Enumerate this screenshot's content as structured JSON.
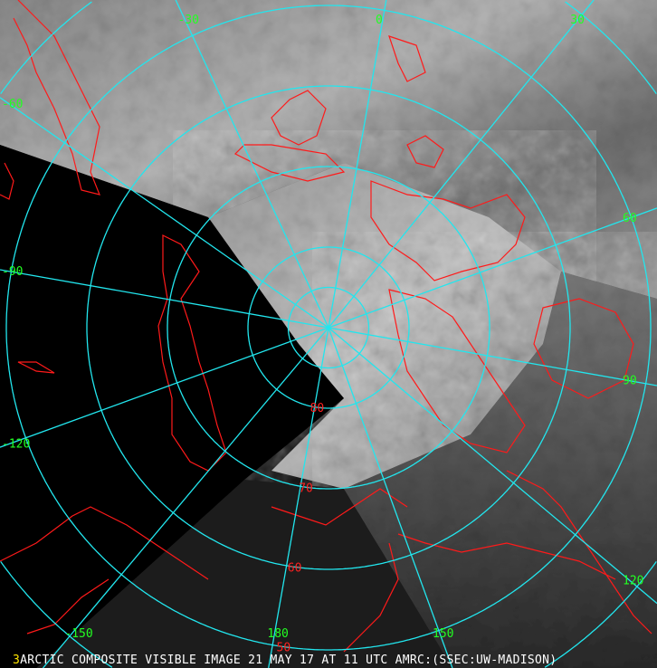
{
  "caption": {
    "frame_number": "3",
    "text": "ARCTIC COMPOSITE VISIBLE IMAGE 21 MAY 17 AT 11 UTC AMRC:(SSEC:UW-MADISON)"
  },
  "colors": {
    "graticule": "#22e6ee",
    "coastline": "#ff1a1a",
    "longitude_labels": "#22ff22",
    "latitude_labels": "#ff2020",
    "frame_number": "#ffe600",
    "caption": "#ffffff"
  },
  "map": {
    "projection": "polar stereographic, north pole centered",
    "longitude_labels": [
      {
        "value": "0",
        "angle": -80
      },
      {
        "value": "30",
        "angle": -51
      },
      {
        "value": "-30",
        "angle": -115
      },
      {
        "value": "60",
        "angle": -20
      },
      {
        "value": "-60",
        "angle": -145
      },
      {
        "value": "90",
        "angle": 10
      },
      {
        "value": "-90",
        "angle": -170
      },
      {
        "value": "120",
        "angle": 40
      },
      {
        "value": "-120",
        "angle": 160
      },
      {
        "value": "150",
        "angle": 70
      },
      {
        "value": "-150",
        "angle": 130
      },
      {
        "value": "180",
        "angle": 100
      }
    ],
    "latitude_labels": [
      {
        "value": "80",
        "lat": 80
      },
      {
        "value": "70",
        "lat": 70
      },
      {
        "value": "60",
        "lat": 60
      },
      {
        "value": "50",
        "lat": 50
      }
    ],
    "latitude_circles": [
      85,
      80,
      70,
      60,
      50,
      40,
      30
    ]
  }
}
